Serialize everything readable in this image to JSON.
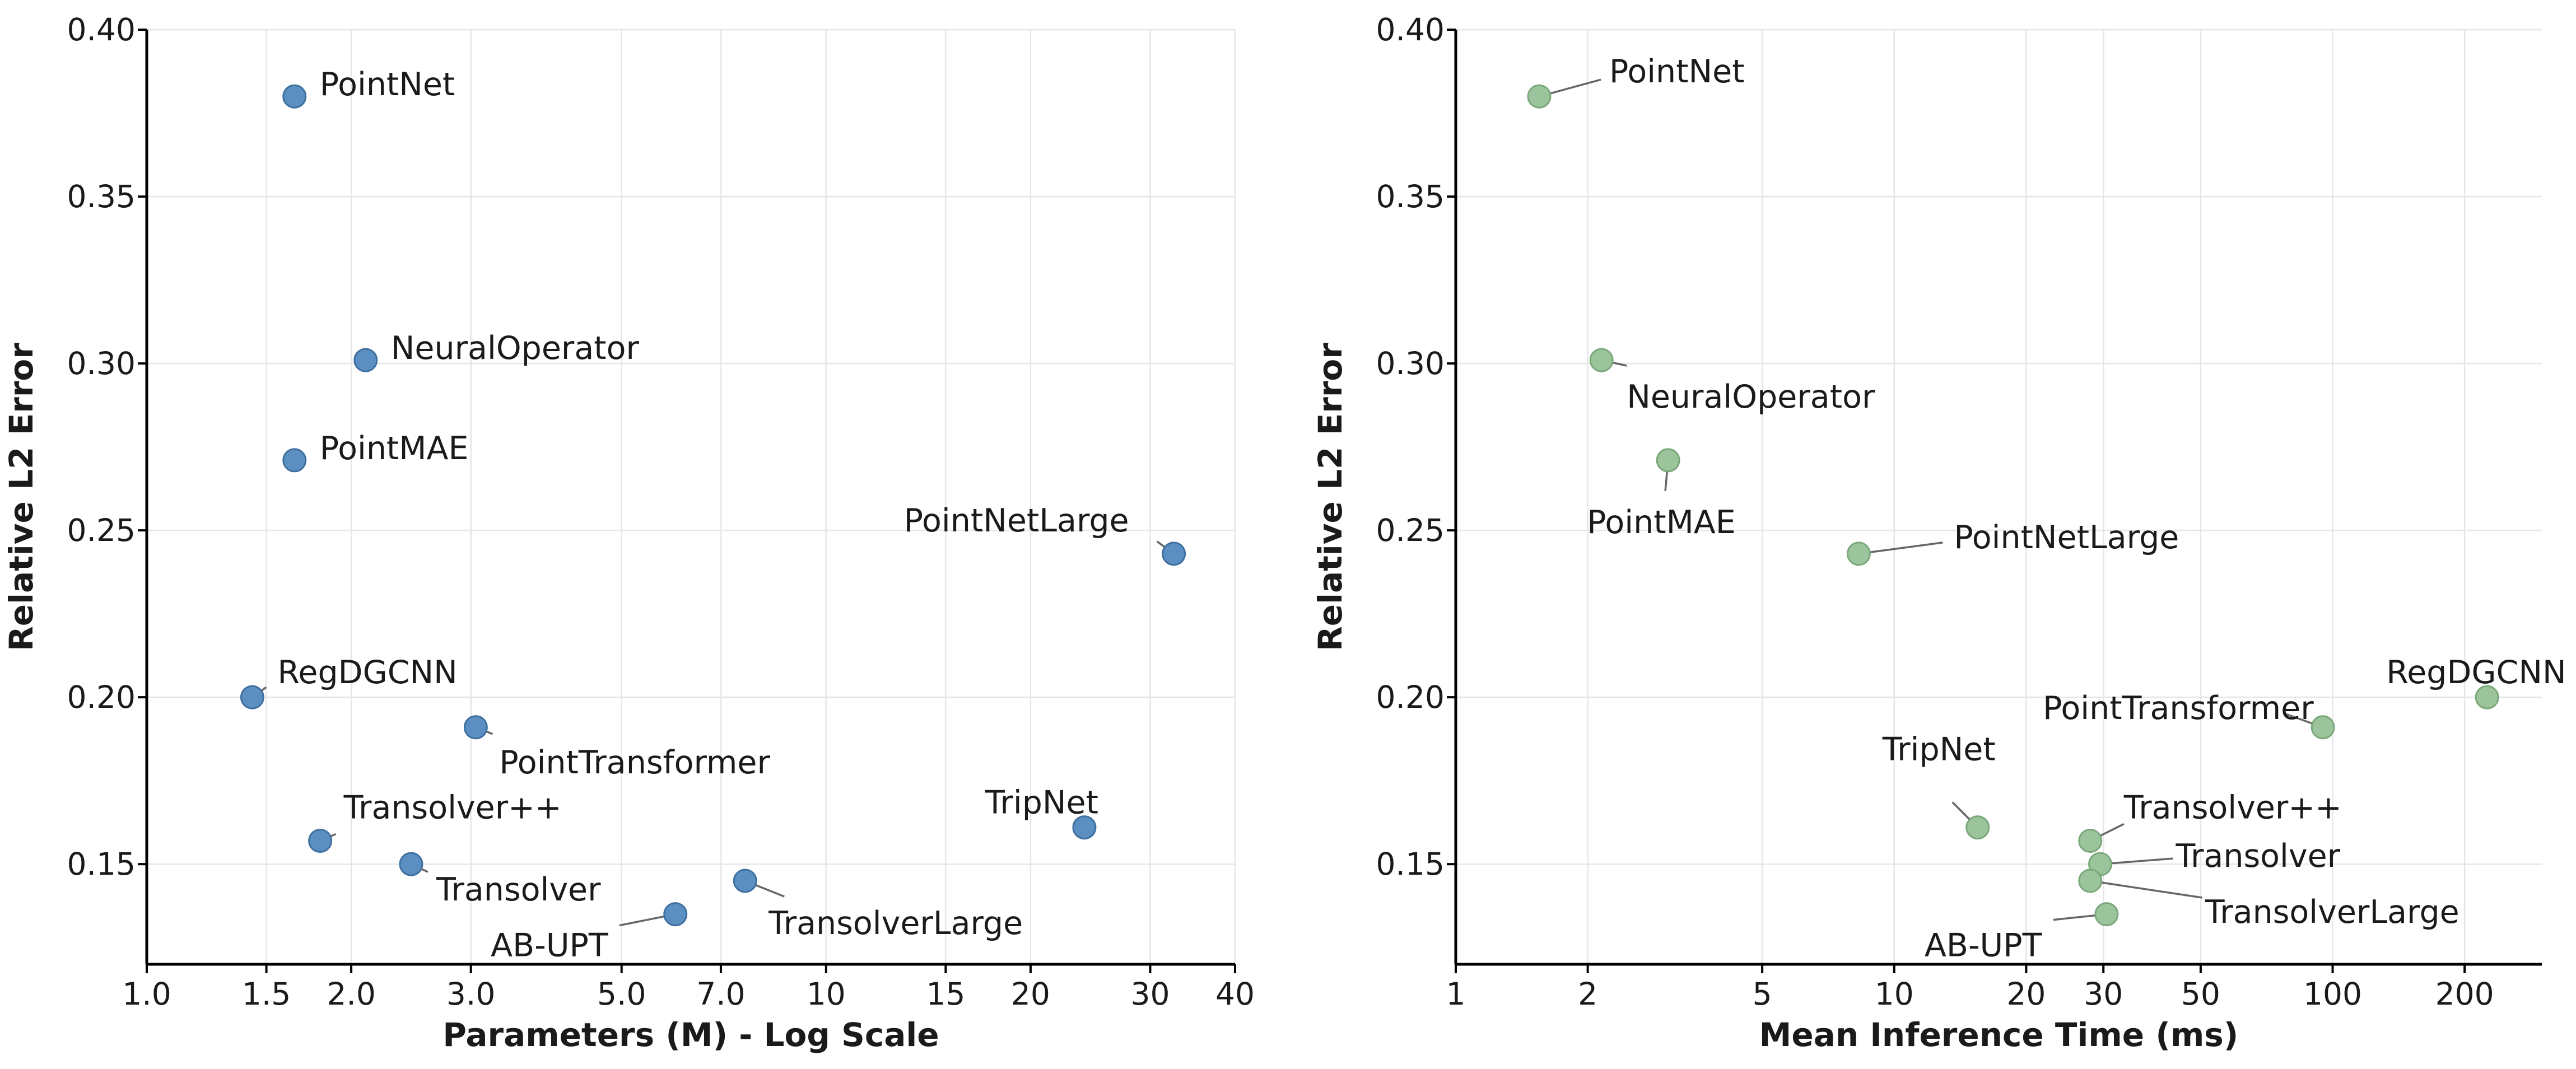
{
  "chart_data": [
    {
      "type": "scatter",
      "panel": "left",
      "xscale": "log",
      "xlabel": "Parameters (M) - Log Scale",
      "ylabel": "Relative L2 Error",
      "xlim": [
        1.0,
        40
      ],
      "ylim": [
        0.12,
        0.4
      ],
      "xticks": [
        1.0,
        1.5,
        2.0,
        3.0,
        5.0,
        7.0,
        10,
        15,
        20,
        30,
        40
      ],
      "xtick_labels": [
        "1.0",
        "1.5",
        "2.0",
        "3.0",
        "5.0",
        "7.0",
        "10",
        "15",
        "20",
        "30",
        "40"
      ],
      "yticks": [
        0.15,
        0.2,
        0.25,
        0.3,
        0.35,
        0.4
      ],
      "ytick_labels": [
        "0.15",
        "0.20",
        "0.25",
        "0.30",
        "0.35",
        "0.40"
      ],
      "grid": true,
      "marker_color": "#5b8fc2",
      "marker_edge": "#3f6f9f",
      "points": [
        {
          "label": "PointNet",
          "x": 1.65,
          "y": 0.38
        },
        {
          "label": "NeuralOperator",
          "x": 2.1,
          "y": 0.301
        },
        {
          "label": "PointMAE",
          "x": 1.65,
          "y": 0.271
        },
        {
          "label": "PointNetLarge",
          "x": 32.5,
          "y": 0.243
        },
        {
          "label": "RegDGCNN",
          "x": 1.43,
          "y": 0.2
        },
        {
          "label": "PointTransformer",
          "x": 3.05,
          "y": 0.191
        },
        {
          "label": "TripNet",
          "x": 24.0,
          "y": 0.161
        },
        {
          "label": "Transolver++",
          "x": 1.8,
          "y": 0.157
        },
        {
          "label": "Transolver",
          "x": 2.45,
          "y": 0.15
        },
        {
          "label": "TransolverLarge",
          "x": 7.6,
          "y": 0.145
        },
        {
          "label": "AB-UPT",
          "x": 6.0,
          "y": 0.135
        }
      ]
    },
    {
      "type": "scatter",
      "panel": "right",
      "xscale": "log",
      "xlabel": "Mean Inference Time (ms)",
      "ylabel": "Relative L2 Error",
      "xlim": [
        1,
        300
      ],
      "ylim": [
        0.12,
        0.4
      ],
      "xticks": [
        1,
        2,
        5,
        10,
        20,
        30,
        50,
        100,
        200
      ],
      "xtick_labels": [
        "1",
        "2",
        "5",
        "10",
        "20",
        "30",
        "50",
        "100",
        "200"
      ],
      "yticks": [
        0.15,
        0.2,
        0.25,
        0.3,
        0.35,
        0.4
      ],
      "ytick_labels": [
        "0.15",
        "0.20",
        "0.25",
        "0.30",
        "0.35",
        "0.40"
      ],
      "grid": true,
      "marker_color": "#9cc49c",
      "marker_edge": "#7aa87a",
      "points": [
        {
          "label": "PointNet",
          "x": 1.55,
          "y": 0.38
        },
        {
          "label": "NeuralOperator",
          "x": 2.15,
          "y": 0.301
        },
        {
          "label": "PointMAE",
          "x": 3.05,
          "y": 0.271
        },
        {
          "label": "PointNetLarge",
          "x": 8.3,
          "y": 0.243
        },
        {
          "label": "RegDGCNN",
          "x": 225,
          "y": 0.2
        },
        {
          "label": "PointTransformer",
          "x": 95,
          "y": 0.191
        },
        {
          "label": "TripNet",
          "x": 15.5,
          "y": 0.161
        },
        {
          "label": "Transolver++",
          "x": 28,
          "y": 0.157
        },
        {
          "label": "Transolver",
          "x": 29.5,
          "y": 0.15
        },
        {
          "label": "TransolverLarge",
          "x": 28,
          "y": 0.145
        },
        {
          "label": "AB-UPT",
          "x": 30.5,
          "y": 0.135
        }
      ]
    }
  ]
}
